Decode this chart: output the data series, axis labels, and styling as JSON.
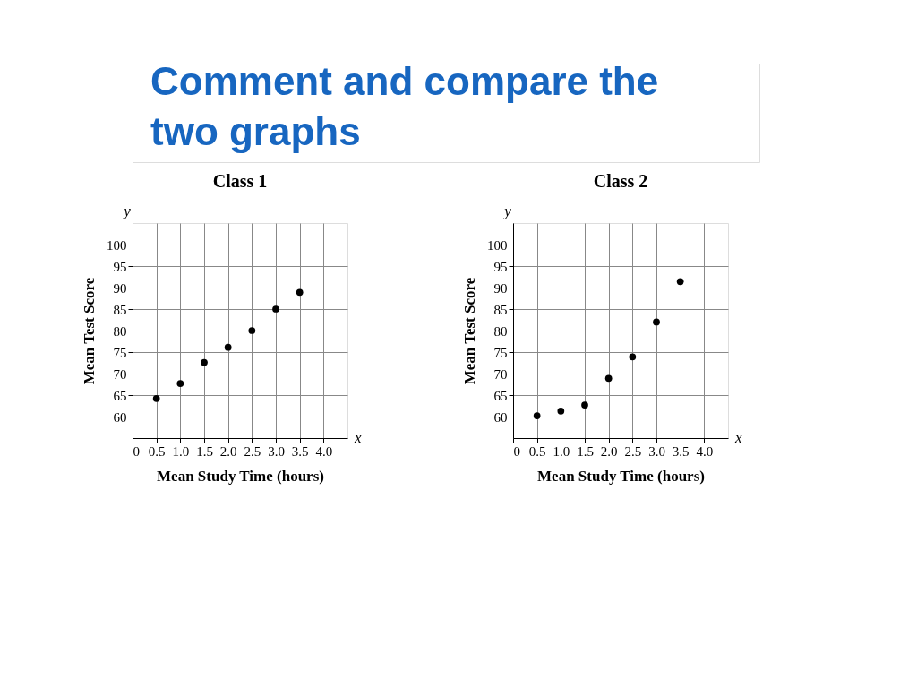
{
  "chart_data": [
    {
      "type": "scatter",
      "title": "Class 1",
      "xlabel": "Mean Study Time (hours)",
      "ylabel": "Mean Test Score",
      "annotations": [
        "Comment and compare the two graphs",
        "y",
        "x"
      ],
      "x": [
        0.5,
        1.0,
        1.5,
        2.0,
        2.5,
        3.0,
        3.5
      ],
      "series": [
        {
          "color": "#000000",
          "values": [
            64.2,
            67.7,
            72.6,
            76.1,
            80,
            85,
            88.9
          ]
        }
      ],
      "xlim": [
        0,
        4.5
      ],
      "xticks": [
        0,
        {
          "value": 0.5,
          "label": "0.5"
        },
        {
          "value": 1.0,
          "label": "1.0"
        },
        {
          "value": 1.5,
          "label": "1.5"
        },
        {
          "value": 2.0,
          "label": "2.0"
        },
        {
          "value": 2.5,
          "label": "2.5"
        },
        {
          "value": 3.0,
          "label": "3.0"
        },
        {
          "value": 3.5,
          "label": "3.5"
        },
        {
          "value": 4.0,
          "label": "4.0"
        }
      ],
      "ylim": [
        55,
        105
      ],
      "yticks": [
        60,
        65,
        70,
        75,
        80,
        85,
        90,
        95,
        100
      ],
      "grid": true,
      "marker": "circle"
    },
    {
      "type": "scatter",
      "title": "Class 2",
      "xlabel": "Mean Study Time (hours)",
      "ylabel": "Mean Test Score",
      "annotations": [
        "y",
        "x"
      ],
      "x": [
        0.5,
        1.0,
        1.5,
        2.0,
        2.5,
        3.0,
        3.5
      ],
      "series": [
        {
          "color": "#000000",
          "values": [
            60.2,
            61.3,
            62.7,
            68.9,
            73.9,
            82,
            91.4
          ]
        }
      ],
      "xlim": [
        0,
        4.5
      ],
      "xticks": [
        0,
        {
          "value": 0.5,
          "label": "0.5"
        },
        {
          "value": 1.0,
          "label": "1.0"
        },
        {
          "value": 1.5,
          "label": "1.5"
        },
        {
          "value": 2.0,
          "label": "2.0"
        },
        {
          "value": 2.5,
          "label": "2.5"
        },
        {
          "value": 3.0,
          "label": "3.0"
        },
        {
          "value": 3.5,
          "label": "3.5"
        },
        {
          "value": 4.0,
          "label": "4.0"
        }
      ],
      "ylim": [
        55,
        105
      ],
      "yticks": [
        60,
        65,
        70,
        75,
        80,
        85,
        90,
        95,
        100
      ],
      "grid": true,
      "marker": "circle"
    }
  ]
}
